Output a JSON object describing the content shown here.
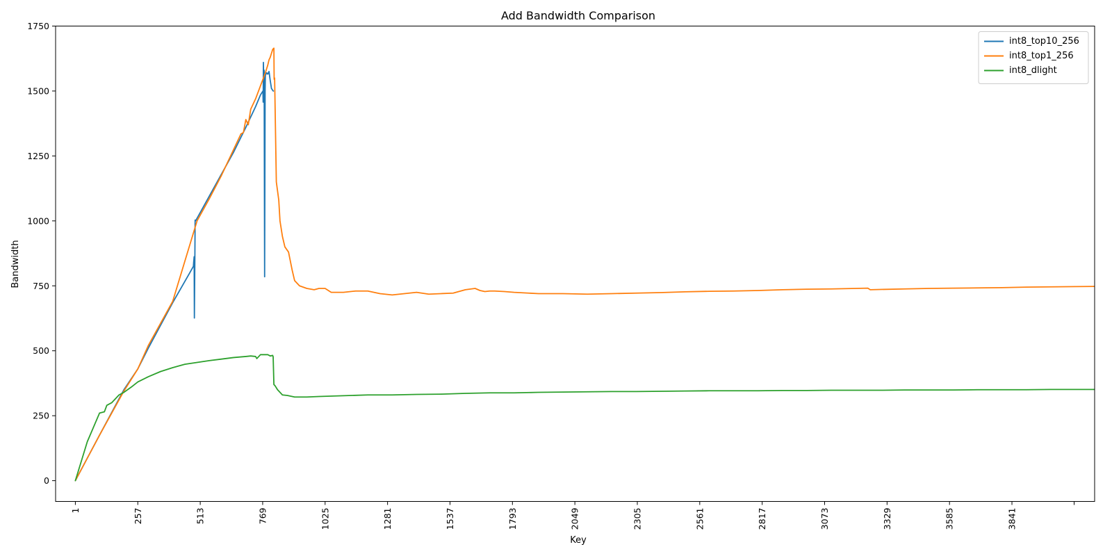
{
  "chart_data": {
    "type": "line",
    "title": "Add Bandwidth Comparison",
    "xlabel": "Key",
    "ylabel": "Bandwidth",
    "xlim": [
      -80,
      4180
    ],
    "ylim": [
      -80,
      1750
    ],
    "xticks": [
      1,
      257,
      513,
      769,
      1025,
      1281,
      1537,
      1793,
      2049,
      2305,
      2561,
      2817,
      3073,
      3329,
      3585,
      3841,
      4096
    ],
    "xtick_labels": [
      "1",
      "257",
      "513",
      "769",
      "1025",
      "1281",
      "1537",
      "1793",
      "2049",
      "2305",
      "2561",
      "2817",
      "3073",
      "3329",
      "3585",
      "3841",
      ""
    ],
    "yticks": [
      0,
      250,
      500,
      750,
      1000,
      1250,
      1500,
      1750
    ],
    "ytick_labels": [
      "0",
      "250",
      "500",
      "750",
      "1000",
      "1250",
      "1500",
      "1750"
    ],
    "grid": false,
    "legend_position": "top-right",
    "series": [
      {
        "name": "int8_top10_256",
        "color": "#1f77b4",
        "x": [
          1,
          100,
          200,
          257,
          300,
          400,
          470,
          485,
          486,
          488,
          489,
          491,
          492,
          494,
          500,
          550,
          600,
          650,
          700,
          740,
          760,
          770,
          771,
          772,
          773,
          775,
          777,
          779,
          780,
          785,
          790,
          795,
          800,
          805,
          812,
          813
        ],
        "y": [
          0,
          175,
          350,
          430,
          510,
          685,
          800,
          825,
          840,
          862,
          626,
          858,
          1003,
          1000,
          1010,
          1095,
          1180,
          1265,
          1360,
          1440,
          1485,
          1500,
          1457,
          1610,
          1560,
          1580,
          785,
          1500,
          1560,
          1570,
          1565,
          1575,
          1540,
          1510,
          1500,
          1500
        ]
      },
      {
        "name": "int8_top1_256",
        "color": "#ff7f0e",
        "x": [
          1,
          100,
          200,
          257,
          300,
          400,
          500,
          550,
          600,
          650,
          680,
          690,
          700,
          710,
          720,
          740,
          760,
          780,
          790,
          795,
          800,
          810,
          815,
          816,
          818,
          825,
          835,
          840,
          850,
          860,
          875,
          890,
          900,
          920,
          950,
          980,
          1000,
          1025,
          1050,
          1100,
          1150,
          1200,
          1250,
          1300,
          1350,
          1400,
          1450,
          1500,
          1550,
          1600,
          1640,
          1660,
          1680,
          1700,
          1720,
          1760,
          1800,
          1900,
          2000,
          2100,
          2200,
          2300,
          2400,
          2500,
          2600,
          2700,
          2800,
          2900,
          3000,
          3100,
          3200,
          3250,
          3260,
          3300,
          3400,
          3500,
          3600,
          3700,
          3800,
          3900,
          4000,
          4100,
          4210
        ],
        "y": [
          0,
          175,
          345,
          430,
          520,
          690,
          1000,
          1085,
          1175,
          1275,
          1335,
          1340,
          1390,
          1370,
          1430,
          1470,
          1520,
          1570,
          1600,
          1620,
          1630,
          1660,
          1665,
          1545,
          1550,
          1150,
          1080,
          1000,
          940,
          900,
          880,
          810,
          770,
          750,
          740,
          735,
          740,
          740,
          725,
          725,
          730,
          730,
          720,
          715,
          720,
          725,
          718,
          720,
          722,
          735,
          740,
          732,
          728,
          730,
          730,
          728,
          725,
          720,
          720,
          718,
          720,
          722,
          724,
          727,
          729,
          730,
          732,
          735,
          737,
          738,
          740,
          741,
          735,
          736,
          738,
          740,
          741,
          742,
          743,
          745,
          746,
          747,
          748
        ]
      },
      {
        "name": "int8_dlight",
        "color": "#2ca02c",
        "x": [
          1,
          50,
          100,
          120,
          130,
          150,
          170,
          180,
          190,
          200,
          230,
          257,
          300,
          350,
          400,
          450,
          500,
          550,
          600,
          650,
          700,
          720,
          740,
          745,
          760,
          790,
          800,
          810,
          812,
          815,
          820,
          830,
          850,
          870,
          900,
          950,
          1000,
          1100,
          1200,
          1300,
          1400,
          1500,
          1600,
          1700,
          1800,
          1900,
          2000,
          2100,
          2200,
          2300,
          2400,
          2500,
          2600,
          2700,
          2800,
          2900,
          3000,
          3100,
          3200,
          3300,
          3400,
          3500,
          3600,
          3700,
          3800,
          3900,
          4000,
          4100,
          4210
        ],
        "y": [
          0,
          150,
          260,
          265,
          290,
          300,
          320,
          330,
          335,
          340,
          360,
          380,
          400,
          420,
          435,
          448,
          455,
          462,
          468,
          474,
          478,
          480,
          478,
          470,
          485,
          485,
          480,
          482,
          477,
          370,
          365,
          350,
          330,
          328,
          322,
          322,
          324,
          327,
          330,
          330,
          332,
          333,
          336,
          338,
          338,
          340,
          341,
          342,
          343,
          343,
          344,
          345,
          346,
          346,
          346,
          347,
          347,
          348,
          348,
          348,
          349,
          349,
          349,
          350,
          350,
          350,
          351,
          351,
          351
        ]
      }
    ]
  }
}
